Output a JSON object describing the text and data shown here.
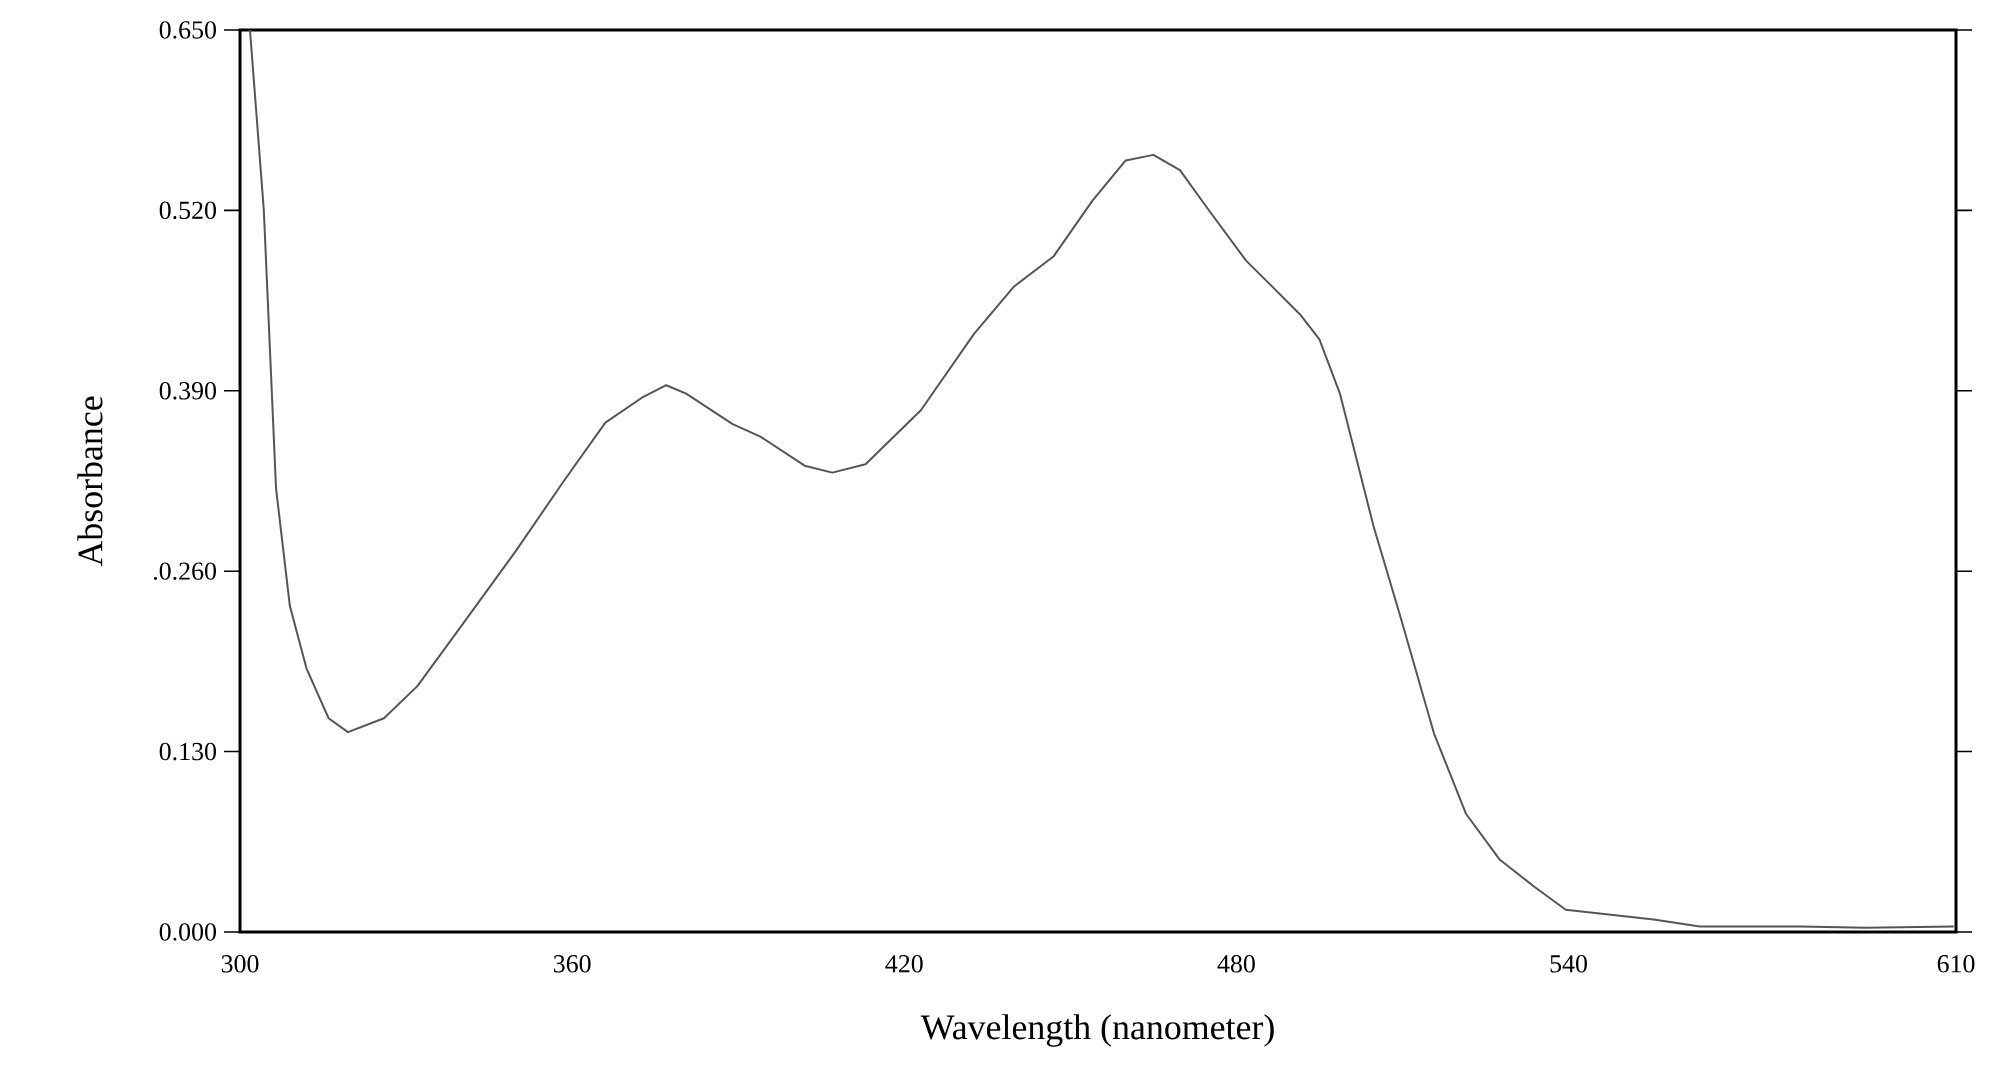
{
  "chart_data": {
    "type": "line",
    "xlabel": "Wavelength (nanometer)",
    "ylabel": "Absorbance",
    "color": "#555555",
    "x": [
      301.8,
      304.3,
      306.5,
      309,
      312,
      316,
      319.5,
      326,
      332,
      339.7,
      349.9,
      358.5,
      366,
      372.6,
      377,
      380.6,
      389,
      394,
      402,
      407,
      413,
      423,
      432.6,
      439.8,
      447,
      454,
      460,
      465,
      469.8,
      474.5,
      481.7,
      491.5,
      495,
      498.7,
      504.8,
      509.5,
      515.7,
      521.5,
      527.6,
      533.7,
      539.5,
      555.4,
      563.7,
      581.8,
      593.7,
      609.6
    ],
    "values": [
      0.65,
      0.52,
      0.32,
      0.235,
      0.19,
      0.154,
      0.144,
      0.154,
      0.177,
      0.219,
      0.275,
      0.325,
      0.367,
      0.385,
      0.394,
      0.388,
      0.366,
      0.357,
      0.336,
      0.331,
      0.337,
      0.376,
      0.431,
      0.465,
      0.487,
      0.527,
      0.556,
      0.56,
      0.549,
      0.523,
      0.484,
      0.445,
      0.427,
      0.388,
      0.292,
      0.229,
      0.143,
      0.085,
      0.052,
      0.033,
      0.016,
      0.009,
      0.004,
      0.004,
      0.003,
      0.004
    ],
    "xlim": [
      300,
      610
    ],
    "ylim": [
      0,
      0.65
    ],
    "xticks": [
      300,
      360,
      420,
      480,
      540,
      610
    ],
    "yticks": [
      {
        "value": 0,
        "label": "0.000"
      },
      {
        "value": 0.13,
        "label": "0.130"
      },
      {
        "value": 0.26,
        "label": ".0.260"
      },
      {
        "value": 0.39,
        "label": "0.390"
      },
      {
        "value": 0.52,
        "label": "0.520"
      },
      {
        "value": 0.65,
        "label": "0.650"
      }
    ],
    "grid": false,
    "marker": "none",
    "line_style": "solid"
  }
}
